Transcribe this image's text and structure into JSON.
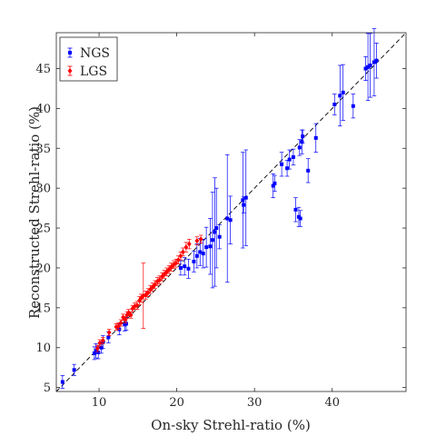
{
  "chart_data": {
    "type": "scatter",
    "xlabel": "On-sky Strehl-ratio (%)",
    "ylabel": "Reconstructed Strehl-ratio (%)",
    "xlim": [
      4.5,
      49.5
    ],
    "ylim": [
      4.5,
      49.5
    ],
    "x_ticks": [
      10,
      20,
      30,
      40
    ],
    "y_ticks": [
      5,
      10,
      15,
      20,
      25,
      30,
      35,
      40,
      45
    ],
    "grid": false,
    "legend_position": "top-left",
    "reference_line": "y = x (dashed)",
    "colors": {
      "NGS": "#0000ff",
      "LGS": "#ff0000",
      "reference": "#000000"
    },
    "series": [
      {
        "name": "NGS",
        "marker": "square",
        "points": [
          [
            5.3,
            5.7,
            0.8
          ],
          [
            6.8,
            7.2,
            0.7
          ],
          [
            9.4,
            9.3,
            0.8
          ],
          [
            9.6,
            9.6,
            0.9
          ],
          [
            9.9,
            9.4,
            0.8
          ],
          [
            10.3,
            10.0,
            0.7
          ],
          [
            10.5,
            10.7,
            0.8
          ],
          [
            11.2,
            11.3,
            0.7
          ],
          [
            12.6,
            12.3,
            0.7
          ],
          [
            13.3,
            12.9,
            0.8
          ],
          [
            13.5,
            13.0,
            0.8
          ],
          [
            20.5,
            20.0,
            0.9
          ],
          [
            21.0,
            20.2,
            1.1
          ],
          [
            21.5,
            19.9,
            1.2
          ],
          [
            22.2,
            20.8,
            1.3
          ],
          [
            22.6,
            21.5,
            1.5
          ],
          [
            23.0,
            22.0,
            1.7
          ],
          [
            23.4,
            21.8,
            1.8
          ],
          [
            23.8,
            22.6,
            2.5
          ],
          [
            24.3,
            22.7,
            3.5
          ],
          [
            24.6,
            23.5,
            6.0
          ],
          [
            24.9,
            24.5,
            6.8
          ],
          [
            25.1,
            25.0,
            5.0
          ],
          [
            25.5,
            23.9,
            1.5
          ],
          [
            26.5,
            26.2,
            8.0
          ],
          [
            26.9,
            26.0,
            3.0
          ],
          [
            28.5,
            28.5,
            6.0
          ],
          [
            28.9,
            28.8,
            6.0
          ],
          [
            28.6,
            27.9,
            1.0
          ],
          [
            32.4,
            30.3,
            1.5
          ],
          [
            32.6,
            30.6,
            1.0
          ],
          [
            33.5,
            33.0,
            1.5
          ],
          [
            34.2,
            32.5,
            1.0
          ],
          [
            34.5,
            33.6,
            1.2
          ],
          [
            35.0,
            33.9,
            1.0
          ],
          [
            35.3,
            27.3,
            1.5
          ],
          [
            35.7,
            26.4,
            1.2
          ],
          [
            35.9,
            26.2,
            1.0
          ],
          [
            35.8,
            35.1,
            1.0
          ],
          [
            36.1,
            35.8,
            1.5
          ],
          [
            36.2,
            36.5,
            0.8
          ],
          [
            36.9,
            32.2,
            1.5
          ],
          [
            37.9,
            36.3,
            1.8
          ],
          [
            40.3,
            40.5,
            1.3
          ],
          [
            41.0,
            41.6,
            3.8
          ],
          [
            41.4,
            42.0,
            3.5
          ],
          [
            42.7,
            40.3,
            1.5
          ],
          [
            44.3,
            45.0,
            1.5
          ],
          [
            44.6,
            45.2,
            4.2
          ],
          [
            44.9,
            45.4,
            4.0
          ],
          [
            45.4,
            45.8,
            4.2
          ],
          [
            45.7,
            46.0,
            2.2
          ]
        ]
      },
      {
        "name": "LGS",
        "marker": "diamond",
        "points": [
          [
            9.8,
            9.9,
            0.4
          ],
          [
            10.1,
            10.6,
            0.4
          ],
          [
            10.5,
            10.9,
            0.4
          ],
          [
            11.3,
            11.9,
            0.4
          ],
          [
            12.2,
            12.6,
            0.4
          ],
          [
            12.5,
            12.7,
            0.4
          ],
          [
            12.8,
            13.1,
            0.4
          ],
          [
            13.1,
            13.8,
            0.4
          ],
          [
            13.4,
            13.5,
            0.4
          ],
          [
            13.6,
            14.1,
            0.4
          ],
          [
            13.8,
            14.4,
            0.4
          ],
          [
            14.1,
            14.1,
            0.4
          ],
          [
            14.3,
            14.9,
            0.4
          ],
          [
            14.6,
            15.2,
            0.4
          ],
          [
            14.9,
            15.3,
            0.5
          ],
          [
            15.2,
            15.9,
            0.5
          ],
          [
            15.4,
            16.2,
            0.5
          ],
          [
            15.7,
            16.5,
            4.1
          ],
          [
            16.0,
            16.6,
            0.5
          ],
          [
            16.3,
            16.9,
            0.5
          ],
          [
            16.6,
            17.3,
            0.5
          ],
          [
            16.9,
            17.6,
            0.5
          ],
          [
            17.2,
            17.9,
            0.5
          ],
          [
            17.5,
            18.3,
            0.5
          ],
          [
            17.8,
            18.5,
            0.5
          ],
          [
            18.1,
            18.9,
            0.5
          ],
          [
            18.4,
            19.2,
            0.5
          ],
          [
            18.7,
            19.5,
            0.5
          ],
          [
            19.0,
            19.8,
            0.5
          ],
          [
            19.3,
            20.1,
            0.5
          ],
          [
            19.6,
            20.4,
            0.5
          ],
          [
            19.9,
            20.6,
            0.5
          ],
          [
            20.2,
            21.0,
            0.5
          ],
          [
            20.5,
            21.5,
            0.5
          ],
          [
            20.8,
            22.0,
            0.5
          ],
          [
            21.2,
            22.6,
            0.6
          ],
          [
            21.6,
            23.0,
            0.6
          ],
          [
            22.6,
            23.4,
            0.5
          ],
          [
            23.1,
            23.6,
            0.5
          ]
        ]
      }
    ]
  }
}
